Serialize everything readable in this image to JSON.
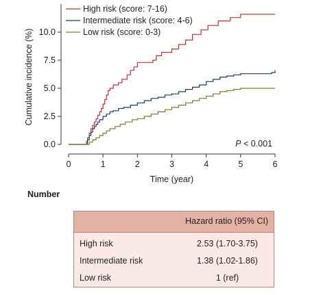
{
  "chart_data": {
    "type": "line",
    "ylabel": "Cumulative incidence (%)",
    "xlabel": "Time (year)",
    "xlim": [
      0,
      6
    ],
    "ylim": [
      0,
      12.5
    ],
    "x_ticks": [
      "0",
      "1",
      "2",
      "3",
      "4",
      "5",
      "6"
    ],
    "y_ticks": [
      "0.0",
      "2.5",
      "5.0",
      "7.5",
      "10.0"
    ],
    "grid": false,
    "legend_position": "top-left",
    "annotation": "P < 0.001",
    "series": [
      {
        "name": "High risk (score: 7-16)",
        "color": "#b5323d",
        "points": [
          [
            0,
            0
          ],
          [
            0.5,
            0
          ],
          [
            0.52,
            0.3
          ],
          [
            0.55,
            0.6
          ],
          [
            0.6,
            1.0
          ],
          [
            0.65,
            1.4
          ],
          [
            0.7,
            1.7
          ],
          [
            0.75,
            2.0
          ],
          [
            0.8,
            2.3
          ],
          [
            0.85,
            2.6
          ],
          [
            0.9,
            2.9
          ],
          [
            0.95,
            3.2
          ],
          [
            1.0,
            3.6
          ],
          [
            1.05,
            4.0
          ],
          [
            1.1,
            4.4
          ],
          [
            1.15,
            4.8
          ],
          [
            1.2,
            5.0
          ],
          [
            1.3,
            5.3
          ],
          [
            1.45,
            5.5
          ],
          [
            1.55,
            5.8
          ],
          [
            1.7,
            6.2
          ],
          [
            1.8,
            6.6
          ],
          [
            1.9,
            6.9
          ],
          [
            2.0,
            7.3
          ],
          [
            2.2,
            7.3
          ],
          [
            2.45,
            7.5
          ],
          [
            2.55,
            7.9
          ],
          [
            2.7,
            8.2
          ],
          [
            3.0,
            8.5
          ],
          [
            3.2,
            8.9
          ],
          [
            3.4,
            9.3
          ],
          [
            3.6,
            9.8
          ],
          [
            3.85,
            10.2
          ],
          [
            4.05,
            10.6
          ],
          [
            4.35,
            11.0
          ],
          [
            4.7,
            11.3
          ],
          [
            5.0,
            11.6
          ],
          [
            6.0,
            11.6
          ]
        ]
      },
      {
        "name": "Intermediate risk (score: 4-6)",
        "color": "#1f3a5f",
        "points": [
          [
            0,
            0
          ],
          [
            0.5,
            0
          ],
          [
            0.55,
            0.4
          ],
          [
            0.6,
            0.8
          ],
          [
            0.65,
            1.1
          ],
          [
            0.7,
            1.4
          ],
          [
            0.75,
            1.6
          ],
          [
            0.8,
            1.8
          ],
          [
            0.85,
            2.0
          ],
          [
            0.9,
            2.2
          ],
          [
            1.0,
            2.5
          ],
          [
            1.1,
            2.7
          ],
          [
            1.2,
            2.9
          ],
          [
            1.3,
            3.0
          ],
          [
            1.45,
            3.2
          ],
          [
            1.6,
            3.3
          ],
          [
            1.8,
            3.5
          ],
          [
            2.0,
            3.7
          ],
          [
            2.2,
            3.9
          ],
          [
            2.4,
            4.1
          ],
          [
            2.6,
            4.2
          ],
          [
            2.8,
            4.4
          ],
          [
            3.0,
            4.5
          ],
          [
            3.2,
            4.7
          ],
          [
            3.4,
            4.9
          ],
          [
            3.6,
            5.1
          ],
          [
            3.8,
            5.3
          ],
          [
            4.0,
            5.6
          ],
          [
            4.2,
            5.8
          ],
          [
            4.4,
            6.0
          ],
          [
            4.6,
            6.1
          ],
          [
            4.8,
            6.2
          ],
          [
            5.0,
            6.3
          ],
          [
            5.5,
            6.3
          ],
          [
            5.9,
            6.4
          ],
          [
            6.0,
            6.6
          ]
        ]
      },
      {
        "name": "Low risk (score: 0-3)",
        "color": "#7a7a2e",
        "points": [
          [
            0,
            0
          ],
          [
            0.5,
            0
          ],
          [
            0.6,
            0.2
          ],
          [
            0.7,
            0.4
          ],
          [
            0.8,
            0.6
          ],
          [
            0.9,
            0.8
          ],
          [
            1.0,
            1.0
          ],
          [
            1.1,
            1.2
          ],
          [
            1.2,
            1.4
          ],
          [
            1.35,
            1.6
          ],
          [
            1.5,
            1.8
          ],
          [
            1.65,
            2.0
          ],
          [
            1.85,
            2.2
          ],
          [
            2.0,
            2.3
          ],
          [
            2.2,
            2.5
          ],
          [
            2.4,
            2.7
          ],
          [
            2.6,
            2.9
          ],
          [
            2.8,
            3.1
          ],
          [
            3.0,
            3.3
          ],
          [
            3.2,
            3.5
          ],
          [
            3.4,
            3.7
          ],
          [
            3.6,
            3.9
          ],
          [
            3.8,
            4.1
          ],
          [
            4.0,
            4.3
          ],
          [
            4.2,
            4.5
          ],
          [
            4.4,
            4.7
          ],
          [
            4.6,
            4.8
          ],
          [
            4.8,
            4.9
          ],
          [
            5.0,
            5.0
          ],
          [
            6.0,
            5.0
          ]
        ]
      }
    ]
  },
  "number_label": "Number",
  "table": {
    "header": "Hazard ratio (95% CI)",
    "rows": [
      {
        "name": "High risk",
        "value": "2.53 (1.70-3.75)"
      },
      {
        "name": "Intermediate risk",
        "value": "1.38 (1.02-1.86)"
      },
      {
        "name": "Low risk",
        "value": "1 (ref)"
      }
    ]
  }
}
